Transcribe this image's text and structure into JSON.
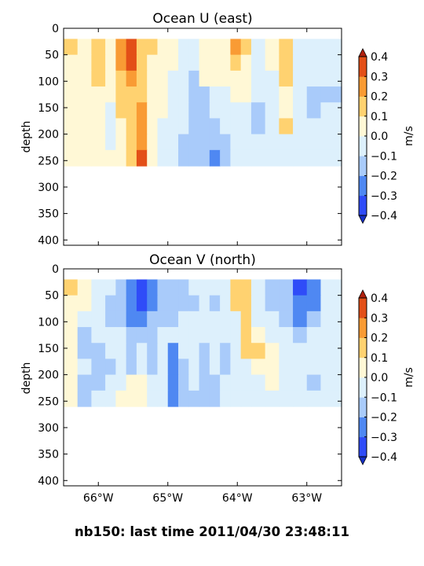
{
  "figure": {
    "suptitle": "nb150: last time 2011/04/30 23:48:11"
  },
  "colorbar": {
    "label": "m/s",
    "ticks": [
      "0.4",
      "0.3",
      "0.2",
      "0.1",
      "0.0",
      "−0.1",
      "−0.2",
      "−0.3",
      "−0.4"
    ],
    "levels": [
      -0.4,
      -0.3,
      -0.2,
      -0.1,
      0.0,
      0.1,
      0.2,
      0.3,
      0.4
    ],
    "colors": [
      "#2f4cf8",
      "#4f88f2",
      "#a9cbfa",
      "#ddf0fc",
      "#fff8d6",
      "#ffd270",
      "#f99b34",
      "#e34f17"
    ],
    "over_color": "#b0200e",
    "under_color": "#1630c8"
  },
  "chart_data": [
    {
      "type": "heatmap",
      "title": "Ocean U (east)",
      "ylabel": "depth",
      "xlabel": "",
      "x_tick_labels": [
        "66°W",
        "65°W",
        "64°W",
        "63°W"
      ],
      "x_ticks": [
        -66,
        -65,
        -64,
        -63
      ],
      "y_tick_labels": [
        "0",
        "50",
        "100",
        "150",
        "200",
        "250",
        "300",
        "350",
        "400"
      ],
      "y_ticks": [
        0,
        50,
        100,
        150,
        200,
        250,
        300,
        350,
        400
      ],
      "xlim": [
        -66.5,
        -62.5
      ],
      "ylim": [
        410,
        0
      ],
      "data_depth_range": [
        20,
        260
      ],
      "x_edges": [
        -66.5,
        -66.3,
        -66.1,
        -65.9,
        -65.75,
        -65.6,
        -65.45,
        -65.3,
        -65.15,
        -65.0,
        -64.85,
        -64.7,
        -64.55,
        -64.4,
        -64.25,
        -64.1,
        -63.95,
        -63.8,
        -63.6,
        -63.4,
        -63.2,
        -63.0,
        -62.8,
        -62.5
      ],
      "y_edges": [
        20,
        50,
        80,
        110,
        140,
        170,
        200,
        230,
        260
      ],
      "values": [
        [
          0.15,
          0.05,
          0.12,
          0.05,
          0.25,
          0.32,
          0.18,
          0.1,
          0.05,
          0.02,
          -0.05,
          -0.05,
          0.0,
          0.05,
          0.05,
          0.25,
          0.15,
          -0.05,
          0.0,
          0.15,
          -0.05,
          -0.05,
          -0.05
        ],
        [
          0.05,
          0.02,
          0.18,
          0.05,
          0.22,
          0.35,
          0.15,
          0.05,
          0.05,
          0.02,
          -0.05,
          -0.05,
          0.0,
          0.05,
          0.05,
          0.15,
          0.05,
          -0.05,
          0.0,
          0.15,
          -0.05,
          -0.05,
          -0.05
        ],
        [
          0.05,
          0.05,
          0.15,
          0.05,
          0.15,
          0.25,
          0.12,
          0.05,
          0.05,
          -0.05,
          -0.05,
          -0.12,
          0.0,
          0.05,
          0.05,
          0.05,
          0.05,
          -0.05,
          -0.05,
          0.15,
          -0.05,
          -0.05,
          -0.05
        ],
        [
          0.05,
          0.05,
          0.05,
          0.05,
          0.15,
          0.15,
          0.15,
          0.05,
          0.05,
          -0.05,
          -0.05,
          -0.15,
          -0.12,
          -0.05,
          -0.05,
          0.05,
          0.05,
          -0.05,
          -0.05,
          0.05,
          -0.05,
          -0.12,
          -0.12
        ],
        [
          0.05,
          0.05,
          0.05,
          -0.05,
          0.15,
          0.15,
          0.25,
          0.05,
          0.05,
          -0.05,
          -0.05,
          -0.15,
          -0.12,
          -0.05,
          -0.05,
          -0.05,
          -0.05,
          -0.12,
          -0.05,
          0.05,
          -0.05,
          -0.12,
          -0.05
        ],
        [
          0.05,
          0.05,
          0.05,
          -0.05,
          0.05,
          0.15,
          0.22,
          0.05,
          -0.05,
          -0.05,
          -0.05,
          -0.15,
          -0.12,
          -0.15,
          -0.05,
          -0.05,
          -0.05,
          -0.12,
          -0.05,
          0.15,
          -0.05,
          -0.05,
          -0.05
        ],
        [
          0.05,
          0.05,
          0.05,
          -0.05,
          0.05,
          0.15,
          0.25,
          0.05,
          -0.05,
          -0.05,
          -0.15,
          -0.12,
          -0.15,
          -0.15,
          -0.15,
          -0.05,
          -0.05,
          -0.05,
          -0.05,
          -0.05,
          -0.05,
          -0.05,
          -0.05
        ],
        [
          0.05,
          0.05,
          0.05,
          0.05,
          0.05,
          0.15,
          0.32,
          0.05,
          -0.05,
          -0.05,
          -0.15,
          -0.15,
          -0.15,
          -0.25,
          -0.12,
          -0.05,
          -0.05,
          -0.05,
          -0.05,
          -0.05,
          -0.05,
          -0.05,
          -0.05
        ]
      ]
    },
    {
      "type": "heatmap",
      "title": "Ocean V (north)",
      "ylabel": "depth",
      "xlabel": "",
      "x_tick_labels": [
        "66°W",
        "65°W",
        "64°W",
        "63°W"
      ],
      "x_ticks": [
        -66,
        -65,
        -64,
        -63
      ],
      "y_tick_labels": [
        "0",
        "50",
        "100",
        "150",
        "200",
        "250",
        "300",
        "350",
        "400"
      ],
      "y_ticks": [
        0,
        50,
        100,
        150,
        200,
        250,
        300,
        350,
        400
      ],
      "xlim": [
        -66.5,
        -62.5
      ],
      "ylim": [
        410,
        0
      ],
      "data_depth_range": [
        20,
        260
      ],
      "x_edges": [
        -66.5,
        -66.3,
        -66.1,
        -65.9,
        -65.75,
        -65.6,
        -65.45,
        -65.3,
        -65.15,
        -65.0,
        -64.85,
        -64.7,
        -64.55,
        -64.4,
        -64.25,
        -64.1,
        -63.95,
        -63.8,
        -63.6,
        -63.4,
        -63.2,
        -63.0,
        -62.8,
        -62.5
      ],
      "y_edges": [
        20,
        50,
        80,
        110,
        140,
        170,
        200,
        230,
        260
      ],
      "values": [
        [
          0.15,
          0.05,
          -0.05,
          -0.05,
          -0.15,
          -0.25,
          -0.35,
          -0.3,
          -0.15,
          -0.12,
          -0.15,
          -0.05,
          -0.05,
          -0.05,
          -0.05,
          0.15,
          0.18,
          -0.05,
          -0.12,
          -0.15,
          -0.35,
          -0.25,
          -0.05
        ],
        [
          0.05,
          0.05,
          -0.05,
          -0.12,
          -0.15,
          -0.25,
          -0.35,
          -0.25,
          -0.15,
          -0.12,
          -0.15,
          -0.12,
          -0.05,
          -0.12,
          -0.05,
          0.15,
          0.15,
          -0.05,
          -0.12,
          -0.15,
          -0.3,
          -0.25,
          -0.05
        ],
        [
          0.05,
          -0.05,
          -0.05,
          -0.12,
          -0.15,
          -0.25,
          -0.25,
          -0.15,
          -0.15,
          -0.12,
          -0.05,
          -0.05,
          -0.05,
          -0.05,
          -0.05,
          -0.05,
          0.15,
          -0.05,
          -0.05,
          -0.12,
          -0.25,
          -0.12,
          -0.05
        ],
        [
          0.05,
          -0.12,
          -0.05,
          -0.05,
          -0.05,
          -0.15,
          -0.15,
          -0.12,
          -0.05,
          -0.05,
          -0.05,
          -0.05,
          -0.05,
          -0.05,
          -0.05,
          -0.05,
          0.15,
          0.05,
          -0.05,
          -0.05,
          -0.12,
          -0.05,
          -0.05
        ],
        [
          0.05,
          -0.12,
          -0.12,
          -0.05,
          -0.05,
          -0.12,
          -0.05,
          -0.12,
          -0.05,
          -0.25,
          -0.05,
          -0.05,
          -0.12,
          -0.05,
          -0.12,
          -0.05,
          0.15,
          0.15,
          0.05,
          -0.05,
          -0.05,
          -0.05,
          -0.05
        ],
        [
          0.05,
          -0.05,
          -0.12,
          -0.12,
          -0.05,
          -0.12,
          -0.05,
          -0.12,
          -0.05,
          -0.25,
          -0.12,
          -0.05,
          -0.12,
          -0.05,
          -0.12,
          -0.05,
          -0.05,
          0.05,
          0.05,
          -0.05,
          -0.05,
          -0.05,
          -0.05
        ],
        [
          0.05,
          -0.12,
          -0.12,
          -0.05,
          -0.05,
          0.05,
          0.05,
          -0.05,
          -0.05,
          -0.25,
          -0.12,
          -0.05,
          -0.12,
          -0.12,
          -0.05,
          -0.05,
          -0.05,
          -0.05,
          0.05,
          -0.05,
          -0.05,
          -0.12,
          -0.05
        ],
        [
          0.05,
          -0.12,
          -0.05,
          -0.05,
          0.05,
          0.05,
          0.05,
          -0.05,
          -0.05,
          -0.25,
          -0.12,
          -0.12,
          -0.12,
          -0.12,
          -0.05,
          -0.05,
          -0.05,
          -0.05,
          -0.05,
          -0.05,
          -0.05,
          -0.05,
          -0.05
        ]
      ]
    }
  ]
}
